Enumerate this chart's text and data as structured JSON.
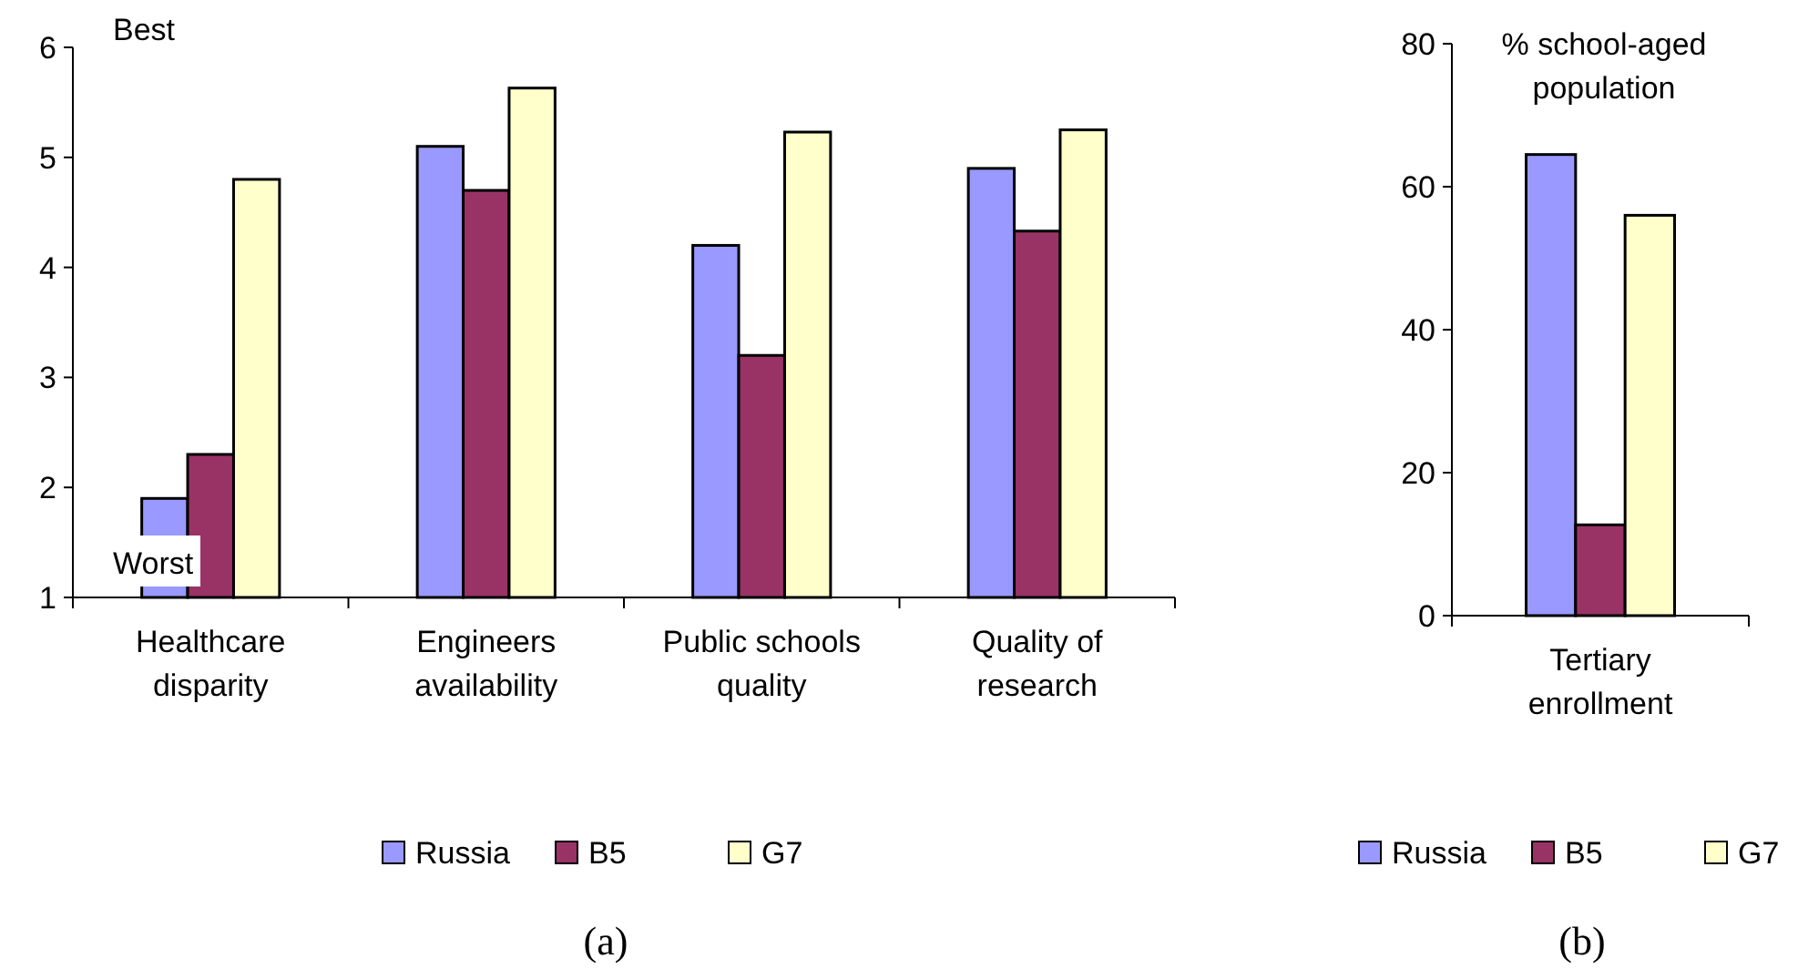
{
  "chart_data": [
    {
      "type": "bar",
      "categories": [
        "Healthcare disparity",
        "Engineers availability",
        "Public schools quality",
        "Quality of research"
      ],
      "series": [
        {
          "name": "Russia",
          "color": "#9999ff",
          "values": [
            1.9,
            5.1,
            4.2,
            4.9
          ]
        },
        {
          "name": "B5",
          "color": "#993366",
          "values": [
            2.3,
            4.7,
            3.2,
            4.33
          ]
        },
        {
          "name": "G7",
          "color": "#ffffcc",
          "values": [
            4.8,
            5.63,
            5.23,
            5.25
          ]
        }
      ],
      "ylim": [
        1,
        6
      ],
      "yticks": [
        1,
        2,
        3,
        4,
        5,
        6
      ],
      "legend": "bottom",
      "grid": false,
      "annotations": [
        "Best",
        "Worst",
        "(a)"
      ]
    },
    {
      "type": "bar",
      "categories": [
        "Tertiary enrollment"
      ],
      "ylabel": "% school-aged population",
      "series": [
        {
          "name": "Russia",
          "color": "#9999ff",
          "values": [
            64.5
          ]
        },
        {
          "name": "B5",
          "color": "#993366",
          "values": [
            12.7
          ]
        },
        {
          "name": "G7",
          "color": "#ffffcc",
          "values": [
            56
          ]
        }
      ],
      "ylim": [
        0,
        80
      ],
      "yticks": [
        0,
        20,
        40,
        60,
        80
      ],
      "legend": "bottom",
      "grid": false,
      "annotations": [
        "(b)"
      ]
    }
  ]
}
